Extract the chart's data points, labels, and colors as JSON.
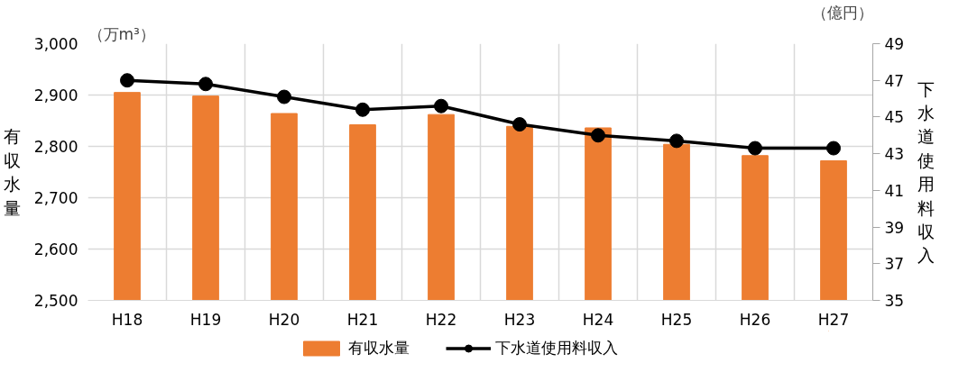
{
  "chart_data": {
    "type": "bar",
    "ylabel": "有収水量",
    "y2label": "下水道使用料収入",
    "annotations": [
      "（万m³）",
      "（億円）"
    ],
    "categories": [
      "H18",
      "H19",
      "H20",
      "H21",
      "H22",
      "H23",
      "H24",
      "H25",
      "H26",
      "H27"
    ],
    "series": [
      {
        "name": "有収水量",
        "color": "#ed7d31",
        "values": [
          2905,
          2898,
          2864,
          2842,
          2862,
          2839,
          2836,
          2804,
          2782,
          2772
        ]
      },
      {
        "name": "下水道使用料収入",
        "type": "line",
        "axis": "y2",
        "color": "#000000",
        "marker": "circle",
        "values": [
          47.0,
          46.8,
          46.1,
          45.4,
          45.6,
          44.6,
          44.0,
          43.7,
          43.3,
          43.3
        ]
      }
    ],
    "ylim": [
      2500,
      3000
    ],
    "yticks": [
      {
        "value": 2500,
        "label": "2,500"
      },
      {
        "value": 2600,
        "label": "2,600"
      },
      {
        "value": 2700,
        "label": "2,700"
      },
      {
        "value": 2800,
        "label": "2,800"
      },
      {
        "value": 2900,
        "label": "2,900"
      },
      {
        "value": 3000,
        "label": "3,000"
      }
    ],
    "y2lim": [
      35,
      49
    ],
    "y2ticks": [
      35,
      37,
      39,
      41,
      43,
      45,
      47,
      49
    ],
    "grid": true,
    "legend": "bottom"
  }
}
